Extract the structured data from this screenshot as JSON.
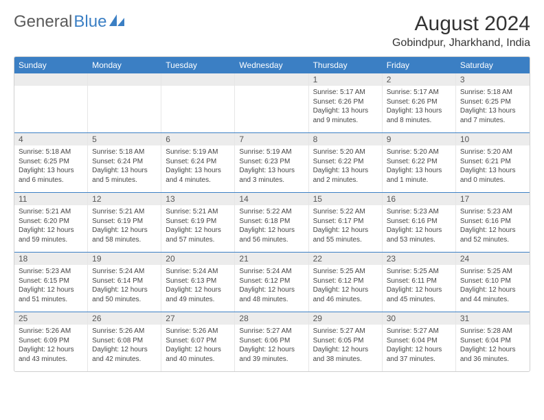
{
  "logo": {
    "text1": "General",
    "text2": "Blue"
  },
  "header": {
    "title": "August 2024",
    "location": "Gobindpur, Jharkhand, India"
  },
  "colors": {
    "header_bg": "#3b7fc4",
    "header_text": "#ffffff",
    "daynum_bg": "#ececec",
    "row_border": "#3b7fc4",
    "cell_border": "#e6e6e6"
  },
  "day_names": [
    "Sunday",
    "Monday",
    "Tuesday",
    "Wednesday",
    "Thursday",
    "Friday",
    "Saturday"
  ],
  "weeks": [
    [
      {
        "n": "",
        "sr": "",
        "ss": "",
        "dl": ""
      },
      {
        "n": "",
        "sr": "",
        "ss": "",
        "dl": ""
      },
      {
        "n": "",
        "sr": "",
        "ss": "",
        "dl": ""
      },
      {
        "n": "",
        "sr": "",
        "ss": "",
        "dl": ""
      },
      {
        "n": "1",
        "sr": "Sunrise: 5:17 AM",
        "ss": "Sunset: 6:26 PM",
        "dl": "Daylight: 13 hours and 9 minutes."
      },
      {
        "n": "2",
        "sr": "Sunrise: 5:17 AM",
        "ss": "Sunset: 6:26 PM",
        "dl": "Daylight: 13 hours and 8 minutes."
      },
      {
        "n": "3",
        "sr": "Sunrise: 5:18 AM",
        "ss": "Sunset: 6:25 PM",
        "dl": "Daylight: 13 hours and 7 minutes."
      }
    ],
    [
      {
        "n": "4",
        "sr": "Sunrise: 5:18 AM",
        "ss": "Sunset: 6:25 PM",
        "dl": "Daylight: 13 hours and 6 minutes."
      },
      {
        "n": "5",
        "sr": "Sunrise: 5:18 AM",
        "ss": "Sunset: 6:24 PM",
        "dl": "Daylight: 13 hours and 5 minutes."
      },
      {
        "n": "6",
        "sr": "Sunrise: 5:19 AM",
        "ss": "Sunset: 6:24 PM",
        "dl": "Daylight: 13 hours and 4 minutes."
      },
      {
        "n": "7",
        "sr": "Sunrise: 5:19 AM",
        "ss": "Sunset: 6:23 PM",
        "dl": "Daylight: 13 hours and 3 minutes."
      },
      {
        "n": "8",
        "sr": "Sunrise: 5:20 AM",
        "ss": "Sunset: 6:22 PM",
        "dl": "Daylight: 13 hours and 2 minutes."
      },
      {
        "n": "9",
        "sr": "Sunrise: 5:20 AM",
        "ss": "Sunset: 6:22 PM",
        "dl": "Daylight: 13 hours and 1 minute."
      },
      {
        "n": "10",
        "sr": "Sunrise: 5:20 AM",
        "ss": "Sunset: 6:21 PM",
        "dl": "Daylight: 13 hours and 0 minutes."
      }
    ],
    [
      {
        "n": "11",
        "sr": "Sunrise: 5:21 AM",
        "ss": "Sunset: 6:20 PM",
        "dl": "Daylight: 12 hours and 59 minutes."
      },
      {
        "n": "12",
        "sr": "Sunrise: 5:21 AM",
        "ss": "Sunset: 6:19 PM",
        "dl": "Daylight: 12 hours and 58 minutes."
      },
      {
        "n": "13",
        "sr": "Sunrise: 5:21 AM",
        "ss": "Sunset: 6:19 PM",
        "dl": "Daylight: 12 hours and 57 minutes."
      },
      {
        "n": "14",
        "sr": "Sunrise: 5:22 AM",
        "ss": "Sunset: 6:18 PM",
        "dl": "Daylight: 12 hours and 56 minutes."
      },
      {
        "n": "15",
        "sr": "Sunrise: 5:22 AM",
        "ss": "Sunset: 6:17 PM",
        "dl": "Daylight: 12 hours and 55 minutes."
      },
      {
        "n": "16",
        "sr": "Sunrise: 5:23 AM",
        "ss": "Sunset: 6:16 PM",
        "dl": "Daylight: 12 hours and 53 minutes."
      },
      {
        "n": "17",
        "sr": "Sunrise: 5:23 AM",
        "ss": "Sunset: 6:16 PM",
        "dl": "Daylight: 12 hours and 52 minutes."
      }
    ],
    [
      {
        "n": "18",
        "sr": "Sunrise: 5:23 AM",
        "ss": "Sunset: 6:15 PM",
        "dl": "Daylight: 12 hours and 51 minutes."
      },
      {
        "n": "19",
        "sr": "Sunrise: 5:24 AM",
        "ss": "Sunset: 6:14 PM",
        "dl": "Daylight: 12 hours and 50 minutes."
      },
      {
        "n": "20",
        "sr": "Sunrise: 5:24 AM",
        "ss": "Sunset: 6:13 PM",
        "dl": "Daylight: 12 hours and 49 minutes."
      },
      {
        "n": "21",
        "sr": "Sunrise: 5:24 AM",
        "ss": "Sunset: 6:12 PM",
        "dl": "Daylight: 12 hours and 48 minutes."
      },
      {
        "n": "22",
        "sr": "Sunrise: 5:25 AM",
        "ss": "Sunset: 6:12 PM",
        "dl": "Daylight: 12 hours and 46 minutes."
      },
      {
        "n": "23",
        "sr": "Sunrise: 5:25 AM",
        "ss": "Sunset: 6:11 PM",
        "dl": "Daylight: 12 hours and 45 minutes."
      },
      {
        "n": "24",
        "sr": "Sunrise: 5:25 AM",
        "ss": "Sunset: 6:10 PM",
        "dl": "Daylight: 12 hours and 44 minutes."
      }
    ],
    [
      {
        "n": "25",
        "sr": "Sunrise: 5:26 AM",
        "ss": "Sunset: 6:09 PM",
        "dl": "Daylight: 12 hours and 43 minutes."
      },
      {
        "n": "26",
        "sr": "Sunrise: 5:26 AM",
        "ss": "Sunset: 6:08 PM",
        "dl": "Daylight: 12 hours and 42 minutes."
      },
      {
        "n": "27",
        "sr": "Sunrise: 5:26 AM",
        "ss": "Sunset: 6:07 PM",
        "dl": "Daylight: 12 hours and 40 minutes."
      },
      {
        "n": "28",
        "sr": "Sunrise: 5:27 AM",
        "ss": "Sunset: 6:06 PM",
        "dl": "Daylight: 12 hours and 39 minutes."
      },
      {
        "n": "29",
        "sr": "Sunrise: 5:27 AM",
        "ss": "Sunset: 6:05 PM",
        "dl": "Daylight: 12 hours and 38 minutes."
      },
      {
        "n": "30",
        "sr": "Sunrise: 5:27 AM",
        "ss": "Sunset: 6:04 PM",
        "dl": "Daylight: 12 hours and 37 minutes."
      },
      {
        "n": "31",
        "sr": "Sunrise: 5:28 AM",
        "ss": "Sunset: 6:04 PM",
        "dl": "Daylight: 12 hours and 36 minutes."
      }
    ]
  ]
}
